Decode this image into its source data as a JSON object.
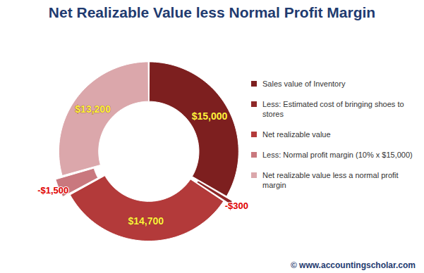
{
  "chart_data": {
    "type": "donut",
    "title": "Net Realizable Value less Normal Profit Margin",
    "categories": [
      "Sales value of Inventory",
      "Less: Estimated cost of bringing shoes to stores",
      "Net realizable value",
      "Less: Normal profit margin (10% x $15,000)",
      "Net realizable value less a normal profit margin"
    ],
    "values": [
      15000,
      -300,
      14700,
      -1500,
      13200
    ],
    "value_labels": [
      "$15,000",
      "-$300",
      "$14,700",
      "-$1,500",
      "$13,200"
    ],
    "colors": [
      "#7d1f1f",
      "#8e2828",
      "#b33a3a",
      "#c9787e",
      "#dba7ab"
    ],
    "data_labels": true,
    "legend": "right",
    "caption": "© www.accountingscholar.com"
  }
}
